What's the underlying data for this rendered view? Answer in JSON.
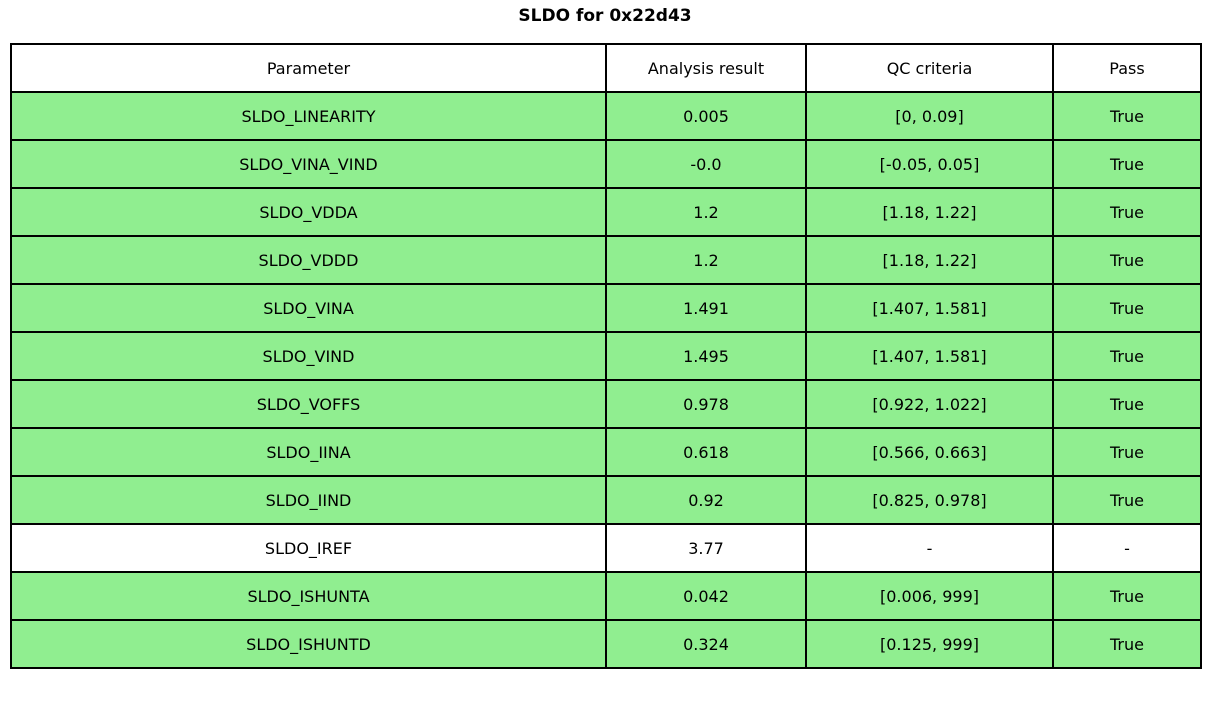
{
  "title": "SLDO for 0x22d43",
  "colors": {
    "pass_green": "#90EE90",
    "row_white": "#ffffff",
    "border": "#000000"
  },
  "table": {
    "columns": [
      "Parameter",
      "Analysis result",
      "QC criteria",
      "Pass"
    ],
    "rows": [
      {
        "parameter": "SLDO_LINEARITY",
        "result": "0.005",
        "criteria": "[0, 0.09]",
        "pass": "True",
        "highlight": true
      },
      {
        "parameter": "SLDO_VINA_VIND",
        "result": "-0.0",
        "criteria": "[-0.05, 0.05]",
        "pass": "True",
        "highlight": true
      },
      {
        "parameter": "SLDO_VDDA",
        "result": "1.2",
        "criteria": "[1.18, 1.22]",
        "pass": "True",
        "highlight": true
      },
      {
        "parameter": "SLDO_VDDD",
        "result": "1.2",
        "criteria": "[1.18, 1.22]",
        "pass": "True",
        "highlight": true
      },
      {
        "parameter": "SLDO_VINA",
        "result": "1.491",
        "criteria": "[1.407, 1.581]",
        "pass": "True",
        "highlight": true
      },
      {
        "parameter": "SLDO_VIND",
        "result": "1.495",
        "criteria": "[1.407, 1.581]",
        "pass": "True",
        "highlight": true
      },
      {
        "parameter": "SLDO_VOFFS",
        "result": "0.978",
        "criteria": "[0.922, 1.022]",
        "pass": "True",
        "highlight": true
      },
      {
        "parameter": "SLDO_IINA",
        "result": "0.618",
        "criteria": "[0.566, 0.663]",
        "pass": "True",
        "highlight": true
      },
      {
        "parameter": "SLDO_IIND",
        "result": "0.92",
        "criteria": "[0.825, 0.978]",
        "pass": "True",
        "highlight": true
      },
      {
        "parameter": "SLDO_IREF",
        "result": "3.77",
        "criteria": "-",
        "pass": "-",
        "highlight": false
      },
      {
        "parameter": "SLDO_ISHUNTA",
        "result": "0.042",
        "criteria": "[0.006, 999]",
        "pass": "True",
        "highlight": true
      },
      {
        "parameter": "SLDO_ISHUNTD",
        "result": "0.324",
        "criteria": "[0.125, 999]",
        "pass": "True",
        "highlight": true
      }
    ]
  },
  "chart_data": {
    "type": "table",
    "title": "SLDO for 0x22d43",
    "columns": [
      "Parameter",
      "Analysis result",
      "QC criteria",
      "Pass"
    ],
    "rows": [
      [
        "SLDO_LINEARITY",
        0.005,
        "[0, 0.09]",
        "True"
      ],
      [
        "SLDO_VINA_VIND",
        -0.0,
        "[-0.05, 0.05]",
        "True"
      ],
      [
        "SLDO_VDDA",
        1.2,
        "[1.18, 1.22]",
        "True"
      ],
      [
        "SLDO_VDDD",
        1.2,
        "[1.18, 1.22]",
        "True"
      ],
      [
        "SLDO_VINA",
        1.491,
        "[1.407, 1.581]",
        "True"
      ],
      [
        "SLDO_VIND",
        1.495,
        "[1.407, 1.581]",
        "True"
      ],
      [
        "SLDO_VOFFS",
        0.978,
        "[0.922, 1.022]",
        "True"
      ],
      [
        "SLDO_IINA",
        0.618,
        "[0.566, 0.663]",
        "True"
      ],
      [
        "SLDO_IIND",
        0.92,
        "[0.825, 0.978]",
        "True"
      ],
      [
        "SLDO_IREF",
        3.77,
        "-",
        "-"
      ],
      [
        "SLDO_ISHUNTA",
        0.042,
        "[0.006, 999]",
        "True"
      ],
      [
        "SLDO_ISHUNTD",
        0.324,
        "[0.125, 999]",
        "True"
      ]
    ],
    "layout_hints": {
      "highlight_color": "#90EE90",
      "highlight_rule": "rows with Pass == True are green; others white",
      "title_position": "top-center"
    }
  }
}
